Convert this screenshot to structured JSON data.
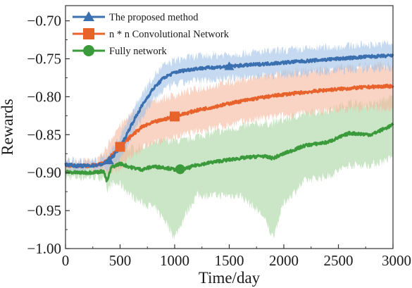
{
  "chart_data": {
    "type": "line",
    "title": "",
    "xlabel": "Time/day",
    "ylabel": "Rewards",
    "xlim": [
      0,
      3000
    ],
    "ylim": [
      -1.0,
      -0.68
    ],
    "xticks": [
      0,
      500,
      1000,
      1500,
      2000,
      2500,
      3000
    ],
    "xtick_labels": [
      "0",
      "500",
      "1000",
      "1500",
      "2000",
      "2500",
      "3000"
    ],
    "yticks": [
      -1.0,
      -0.95,
      -0.9,
      -0.85,
      -0.8,
      -0.75,
      -0.7
    ],
    "ytick_labels": [
      "−1.00",
      "−0.95",
      "−0.90",
      "−0.85",
      "−0.80",
      "−0.75",
      "−0.70"
    ],
    "grid": false,
    "legend_position": "top-left",
    "series": [
      {
        "name": "The proposed method",
        "color": "#3a6fb0",
        "band_color": "#9ec0e6",
        "marker": "triangle",
        "x": [
          0,
          100,
          200,
          300,
          350,
          400,
          450,
          500,
          550,
          600,
          700,
          800,
          900,
          1000,
          1100,
          1200,
          1400,
          1600,
          1800,
          2000,
          2200,
          2400,
          2600,
          2800,
          3000
        ],
        "y": [
          -0.889,
          -0.891,
          -0.891,
          -0.89,
          -0.888,
          -0.884,
          -0.876,
          -0.866,
          -0.853,
          -0.838,
          -0.812,
          -0.79,
          -0.775,
          -0.768,
          -0.765,
          -0.763,
          -0.761,
          -0.759,
          -0.757,
          -0.755,
          -0.753,
          -0.751,
          -0.749,
          -0.747,
          -0.746
        ],
        "band_half_width": [
          0.006,
          0.006,
          0.006,
          0.006,
          0.008,
          0.01,
          0.012,
          0.014,
          0.016,
          0.016,
          0.016,
          0.016,
          0.016,
          0.016,
          0.016,
          0.016,
          0.016,
          0.016,
          0.016,
          0.016,
          0.016,
          0.016,
          0.016,
          0.016,
          0.016
        ],
        "marker_x": [
          400,
          1500
        ]
      },
      {
        "name": "n * n Convolutional Network",
        "color": "#e8622c",
        "band_color": "#f5b79c",
        "marker": "square",
        "x": [
          0,
          100,
          200,
          300,
          350,
          400,
          450,
          500,
          600,
          700,
          800,
          900,
          1000,
          1100,
          1200,
          1400,
          1600,
          1800,
          2000,
          2200,
          2400,
          2600,
          2800,
          3000
        ],
        "y": [
          -0.89,
          -0.891,
          -0.891,
          -0.89,
          -0.887,
          -0.88,
          -0.873,
          -0.866,
          -0.852,
          -0.84,
          -0.834,
          -0.83,
          -0.826,
          -0.822,
          -0.818,
          -0.812,
          -0.806,
          -0.801,
          -0.797,
          -0.794,
          -0.791,
          -0.789,
          -0.787,
          -0.786
        ],
        "band_half_width": [
          0.006,
          0.006,
          0.006,
          0.006,
          0.012,
          0.02,
          0.026,
          0.028,
          0.028,
          0.028,
          0.028,
          0.028,
          0.028,
          0.028,
          0.028,
          0.028,
          0.028,
          0.028,
          0.028,
          0.028,
          0.028,
          0.028,
          0.028,
          0.028
        ],
        "marker_x": [
          500,
          1000
        ]
      },
      {
        "name": "Fully network",
        "color": "#3b9a3b",
        "band_color": "#a9d6a0",
        "marker": "circle",
        "x": [
          0,
          100,
          200,
          300,
          350,
          380,
          420,
          500,
          600,
          700,
          800,
          900,
          1000,
          1100,
          1200,
          1400,
          1600,
          1800,
          1900,
          2000,
          2200,
          2400,
          2600,
          2800,
          3000
        ],
        "y": [
          -0.899,
          -0.9,
          -0.9,
          -0.899,
          -0.898,
          -0.912,
          -0.893,
          -0.888,
          -0.893,
          -0.896,
          -0.892,
          -0.893,
          -0.896,
          -0.895,
          -0.89,
          -0.885,
          -0.881,
          -0.878,
          -0.881,
          -0.875,
          -0.864,
          -0.86,
          -0.848,
          -0.85,
          -0.837
        ],
        "band_lower": [
          -0.906,
          -0.906,
          -0.906,
          -0.906,
          -0.908,
          -0.925,
          -0.915,
          -0.915,
          -0.93,
          -0.94,
          -0.945,
          -0.96,
          -0.985,
          -0.955,
          -0.93,
          -0.93,
          -0.93,
          -0.955,
          -0.985,
          -0.94,
          -0.91,
          -0.905,
          -0.89,
          -0.89,
          -0.88
        ],
        "band_upper": [
          -0.892,
          -0.893,
          -0.893,
          -0.892,
          -0.89,
          -0.895,
          -0.878,
          -0.868,
          -0.868,
          -0.866,
          -0.862,
          -0.858,
          -0.858,
          -0.858,
          -0.852,
          -0.846,
          -0.84,
          -0.835,
          -0.835,
          -0.83,
          -0.822,
          -0.818,
          -0.808,
          -0.81,
          -0.8
        ],
        "marker_x": [
          1050
        ]
      }
    ]
  }
}
